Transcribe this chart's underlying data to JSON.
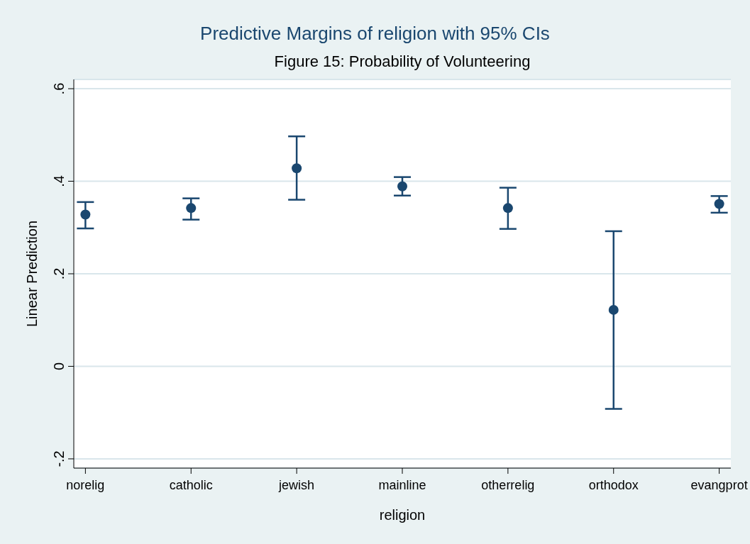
{
  "chart_data": {
    "type": "scatter",
    "title": "Predictive Margins of religion with 95% CIs",
    "subtitle": "Figure 15: Probability of Volunteering",
    "xlabel": "religion",
    "ylabel": "Linear Prediction",
    "categories": [
      "norelig",
      "catholic",
      "jewish",
      "mainline",
      "otherrelig",
      "orthodox",
      "evangprot"
    ],
    "series": [
      {
        "color": "#1a476f",
        "values": [
          0.328,
          0.342,
          0.428,
          0.389,
          0.342,
          0.122,
          0.351
        ],
        "errors": [
          [
            0.298,
            0.355
          ],
          [
            0.317,
            0.363
          ],
          [
            0.36,
            0.497
          ],
          [
            0.369,
            0.409
          ],
          [
            0.297,
            0.386
          ],
          [
            -0.092,
            0.292
          ],
          [
            0.332,
            0.368
          ]
        ]
      }
    ],
    "ylim": [
      -0.22,
      0.62
    ],
    "yticks": [
      {
        "value": -0.2,
        "label": "-.2"
      },
      {
        "value": 0,
        "label": "0"
      },
      {
        "value": 0.2,
        "label": ".2"
      },
      {
        "value": 0.4,
        "label": ".4"
      },
      {
        "value": 0.6,
        "label": ".6"
      }
    ],
    "grid": "y",
    "marker": "circle"
  }
}
